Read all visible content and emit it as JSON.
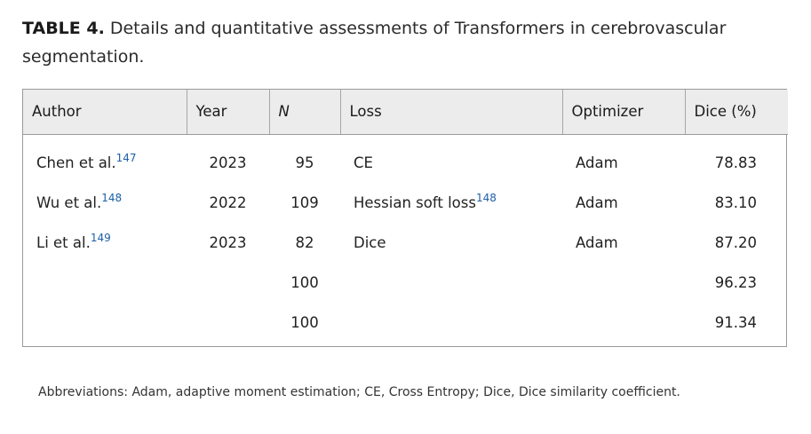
{
  "caption": {
    "label": "TABLE 4.",
    "text": "Details and quantitative assessments of Transformers in cerebrovascular segmentation."
  },
  "table": {
    "headers": [
      "Author",
      "Year",
      "N",
      "Loss",
      "Optimizer",
      "Dice (%)"
    ],
    "rows": [
      {
        "author": "Chen et al.",
        "ref": "147",
        "year": "2023",
        "n": "95",
        "loss": "CE",
        "loss_ref": "",
        "optimizer": "Adam",
        "dice": "78.83"
      },
      {
        "author": "Wu et al.",
        "ref": "148",
        "year": "2022",
        "n": "109",
        "loss": "Hessian soft loss",
        "loss_ref": "148",
        "optimizer": "Adam",
        "dice": "83.10"
      },
      {
        "author": "Li et al.",
        "ref": "149",
        "year": "2023",
        "n": "82",
        "loss": "Dice",
        "loss_ref": "",
        "optimizer": "Adam",
        "dice": "87.20"
      },
      {
        "author": "",
        "ref": "",
        "year": "",
        "n": "100",
        "loss": "",
        "loss_ref": "",
        "optimizer": "",
        "dice": "96.23"
      },
      {
        "author": "",
        "ref": "",
        "year": "",
        "n": "100",
        "loss": "",
        "loss_ref": "",
        "optimizer": "",
        "dice": "91.34"
      }
    ]
  },
  "footnote": "Abbreviations: Adam, adaptive moment estimation; CE, Cross Entropy; Dice, Dice similarity coefficient.",
  "colors": {
    "header_bg": "#ececec",
    "reference_link": "#1d5fa8",
    "border": "#9a9a9a"
  }
}
